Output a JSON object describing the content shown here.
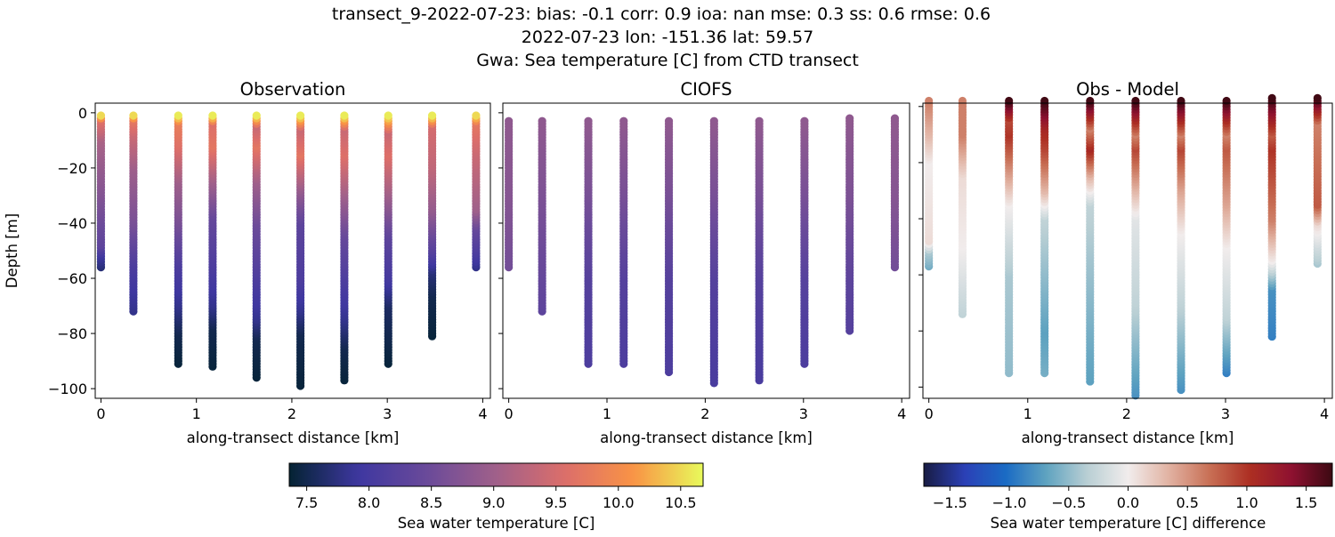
{
  "title_lines": [
    "transect_9-2022-07-23: bias: -0.1  corr: 0.9  ioa: nan  mse: 0.3  ss: 0.6  rmse: 0.6",
    "2022-07-23 lon: -151.36 lat: 59.57",
    "Gwa: Sea temperature [C] from CTD transect"
  ],
  "chart_data": [
    {
      "type": "scatter",
      "title": "Observation",
      "xlabel": "along-transect distance [km]",
      "ylabel": "Depth [m]",
      "xlim": [
        -0.06,
        4.08
      ],
      "ylim": [
        -103.5,
        3.5
      ],
      "xticks": [
        "0",
        "1",
        "2",
        "3",
        "4"
      ],
      "yticks": [
        "0",
        "−20",
        "−40",
        "−60",
        "−80",
        "−100"
      ],
      "color_variable": "Sea water temperature [C]",
      "stations": [
        {
          "x": 0.0,
          "profile": [
            [
              -1,
              10.5
            ],
            [
              -3,
              9.6
            ],
            [
              -10,
              9.1
            ],
            [
              -30,
              8.7
            ],
            [
              -48,
              8.3
            ],
            [
              -52,
              7.9
            ],
            [
              -56,
              7.7
            ]
          ]
        },
        {
          "x": 0.34,
          "profile": [
            [
              -1,
              10.5
            ],
            [
              -3,
              9.7
            ],
            [
              -8,
              9.4
            ],
            [
              -20,
              9.0
            ],
            [
              -40,
              8.6
            ],
            [
              -55,
              8.1
            ],
            [
              -65,
              7.9
            ],
            [
              -72,
              7.8
            ]
          ]
        },
        {
          "x": 0.81,
          "profile": [
            [
              -1,
              10.6
            ],
            [
              -4,
              9.8
            ],
            [
              -12,
              9.6
            ],
            [
              -25,
              9.0
            ],
            [
              -40,
              8.6
            ],
            [
              -55,
              8.1
            ],
            [
              -70,
              7.8
            ],
            [
              -80,
              7.5
            ],
            [
              -91,
              7.4
            ]
          ]
        },
        {
          "x": 1.17,
          "profile": [
            [
              -1,
              10.6
            ],
            [
              -4,
              9.6
            ],
            [
              -12,
              9.7
            ],
            [
              -25,
              9.0
            ],
            [
              -38,
              8.4
            ],
            [
              -55,
              8.1
            ],
            [
              -70,
              7.8
            ],
            [
              -78,
              7.5
            ],
            [
              -92,
              7.4
            ]
          ]
        },
        {
          "x": 1.63,
          "profile": [
            [
              -1,
              10.6
            ],
            [
              -5,
              9.4
            ],
            [
              -12,
              9.7
            ],
            [
              -25,
              9.0
            ],
            [
              -40,
              8.5
            ],
            [
              -60,
              8.1
            ],
            [
              -75,
              7.8
            ],
            [
              -82,
              7.5
            ],
            [
              -96,
              7.4
            ]
          ]
        },
        {
          "x": 2.09,
          "profile": [
            [
              -1,
              10.6
            ],
            [
              -6,
              9.4
            ],
            [
              -15,
              9.7
            ],
            [
              -30,
              8.8
            ],
            [
              -40,
              8.3
            ],
            [
              -60,
              8.1
            ],
            [
              -72,
              7.8
            ],
            [
              -80,
              7.5
            ],
            [
              -99,
              7.4
            ]
          ]
        },
        {
          "x": 2.55,
          "profile": [
            [
              -1,
              10.6
            ],
            [
              -6,
              9.4
            ],
            [
              -15,
              9.6
            ],
            [
              -30,
              9.0
            ],
            [
              -45,
              8.4
            ],
            [
              -60,
              8.1
            ],
            [
              -75,
              7.8
            ],
            [
              -85,
              7.5
            ],
            [
              -97,
              7.4
            ]
          ]
        },
        {
          "x": 3.01,
          "profile": [
            [
              -1,
              10.6
            ],
            [
              -7,
              9.4
            ],
            [
              -15,
              9.6
            ],
            [
              -30,
              9.0
            ],
            [
              -45,
              8.3
            ],
            [
              -60,
              8.0
            ],
            [
              -70,
              7.6
            ],
            [
              -91,
              7.4
            ]
          ]
        },
        {
          "x": 3.47,
          "profile": [
            [
              -1,
              10.6
            ],
            [
              -5,
              9.5
            ],
            [
              -20,
              9.3
            ],
            [
              -35,
              8.9
            ],
            [
              -50,
              8.2
            ],
            [
              -58,
              7.7
            ],
            [
              -66,
              7.5
            ],
            [
              -81,
              7.4
            ]
          ]
        },
        {
          "x": 3.93,
          "profile": [
            [
              -1,
              10.5
            ],
            [
              -4,
              9.7
            ],
            [
              -15,
              9.4
            ],
            [
              -35,
              9.0
            ],
            [
              -42,
              8.4
            ],
            [
              -50,
              8.1
            ],
            [
              -56,
              7.8
            ]
          ]
        }
      ]
    },
    {
      "type": "scatter",
      "title": "CIOFS",
      "xlabel": "along-transect distance [km]",
      "xlim": [
        -0.06,
        4.08
      ],
      "ylim": [
        -103.5,
        3.5
      ],
      "xticks": [
        "0",
        "1",
        "2",
        "3",
        "4"
      ],
      "color_variable": "Sea water temperature [C]",
      "stations": [
        {
          "x": 0.0,
          "profile": [
            [
              -3,
              8.85
            ],
            [
              -30,
              8.75
            ],
            [
              -56,
              8.55
            ]
          ]
        },
        {
          "x": 0.34,
          "profile": [
            [
              -3,
              8.85
            ],
            [
              -30,
              8.65
            ],
            [
              -72,
              8.3
            ]
          ]
        },
        {
          "x": 0.81,
          "profile": [
            [
              -3,
              8.85
            ],
            [
              -30,
              8.6
            ],
            [
              -60,
              8.2
            ],
            [
              -91,
              8.1
            ]
          ]
        },
        {
          "x": 1.17,
          "profile": [
            [
              -3,
              8.85
            ],
            [
              -30,
              8.6
            ],
            [
              -60,
              8.2
            ],
            [
              -91,
              8.1
            ]
          ]
        },
        {
          "x": 1.63,
          "profile": [
            [
              -3,
              8.85
            ],
            [
              -30,
              8.6
            ],
            [
              -60,
              8.2
            ],
            [
              -94,
              8.1
            ]
          ]
        },
        {
          "x": 2.09,
          "profile": [
            [
              -3,
              8.85
            ],
            [
              -30,
              8.6
            ],
            [
              -60,
              8.2
            ],
            [
              -98,
              8.05
            ]
          ]
        },
        {
          "x": 2.55,
          "profile": [
            [
              -3,
              8.85
            ],
            [
              -30,
              8.6
            ],
            [
              -60,
              8.2
            ],
            [
              -97,
              8.05
            ]
          ]
        },
        {
          "x": 3.01,
          "profile": [
            [
              -3,
              8.85
            ],
            [
              -30,
              8.6
            ],
            [
              -60,
              8.2
            ],
            [
              -91,
              8.1
            ]
          ]
        },
        {
          "x": 3.47,
          "profile": [
            [
              -2,
              8.85
            ],
            [
              -30,
              8.65
            ],
            [
              -60,
              8.3
            ],
            [
              -79,
              8.2
            ]
          ]
        },
        {
          "x": 3.93,
          "profile": [
            [
              -2,
              8.85
            ],
            [
              -30,
              8.75
            ],
            [
              -56,
              8.55
            ]
          ]
        }
      ]
    },
    {
      "type": "scatter",
      "title": "Obs - Model",
      "xlabel": "along-transect distance [km]",
      "xlim": [
        -0.06,
        4.08
      ],
      "ylim": [
        -104,
        1.2
      ],
      "xticks": [
        "0",
        "1",
        "2",
        "3",
        "4"
      ],
      "color_variable": "Sea water temperature [C] difference",
      "stations": [
        {
          "x": 0.0,
          "profile": [
            [
              2,
              0.6
            ],
            [
              -10,
              0.3
            ],
            [
              -20,
              0.0
            ],
            [
              -48,
              0.1
            ],
            [
              -52,
              -0.4
            ],
            [
              -57,
              -0.6
            ]
          ]
        },
        {
          "x": 0.34,
          "profile": [
            [
              2,
              0.6
            ],
            [
              -10,
              0.6
            ],
            [
              -25,
              0.1
            ],
            [
              -50,
              0.0
            ],
            [
              -74,
              -0.3
            ]
          ]
        },
        {
          "x": 0.81,
          "profile": [
            [
              2,
              1.7
            ],
            [
              -5,
              0.9
            ],
            [
              -10,
              1.0
            ],
            [
              -25,
              0.4
            ],
            [
              -35,
              0.0
            ],
            [
              -60,
              -0.4
            ],
            [
              -95,
              -0.5
            ]
          ]
        },
        {
          "x": 1.17,
          "profile": [
            [
              2,
              1.7
            ],
            [
              -8,
              1.1
            ],
            [
              -15,
              0.9
            ],
            [
              -30,
              0.3
            ],
            [
              -40,
              -0.3
            ],
            [
              -80,
              -0.7
            ],
            [
              -95,
              -0.6
            ]
          ]
        },
        {
          "x": 1.63,
          "profile": [
            [
              2,
              1.7
            ],
            [
              -8,
              0.6
            ],
            [
              -15,
              1.1
            ],
            [
              -25,
              0.3
            ],
            [
              -35,
              -0.3
            ],
            [
              -80,
              -0.6
            ],
            [
              -98,
              -0.7
            ]
          ]
        },
        {
          "x": 2.09,
          "profile": [
            [
              2,
              1.7
            ],
            [
              -10,
              0.6
            ],
            [
              -15,
              0.9
            ],
            [
              -30,
              0.3
            ],
            [
              -40,
              -0.1
            ],
            [
              -70,
              -0.3
            ],
            [
              -103,
              -0.8
            ]
          ]
        },
        {
          "x": 2.55,
          "profile": [
            [
              2,
              1.7
            ],
            [
              -10,
              0.6
            ],
            [
              -15,
              0.9
            ],
            [
              -30,
              0.4
            ],
            [
              -45,
              0.0
            ],
            [
              -70,
              -0.3
            ],
            [
              -101,
              -0.8
            ]
          ]
        },
        {
          "x": 3.01,
          "profile": [
            [
              2,
              1.7
            ],
            [
              -10,
              0.6
            ],
            [
              -15,
              0.8
            ],
            [
              -35,
              0.4
            ],
            [
              -50,
              0.0
            ],
            [
              -75,
              -0.3
            ],
            [
              -95,
              -0.9
            ]
          ]
        },
        {
          "x": 3.47,
          "profile": [
            [
              3,
              1.7
            ],
            [
              -10,
              0.8
            ],
            [
              -15,
              1.0
            ],
            [
              -40,
              0.6
            ],
            [
              -55,
              0.0
            ],
            [
              -65,
              -0.8
            ],
            [
              -82,
              -0.9
            ]
          ]
        },
        {
          "x": 3.93,
          "profile": [
            [
              3,
              1.7
            ],
            [
              -6,
              0.6
            ],
            [
              -35,
              0.8
            ],
            [
              -42,
              0.1
            ],
            [
              -50,
              -0.2
            ],
            [
              -56,
              -0.4
            ]
          ]
        }
      ]
    }
  ],
  "colorbars": [
    {
      "label": "Sea water temperature [C]",
      "range": [
        7.36,
        10.68
      ],
      "cmap": "thermal",
      "ticks": [
        {
          "v": 7.5,
          "t": "7.5"
        },
        {
          "v": 8.0,
          "t": "8.0"
        },
        {
          "v": 8.5,
          "t": "8.5"
        },
        {
          "v": 9.0,
          "t": "9.0"
        },
        {
          "v": 9.5,
          "t": "9.5"
        },
        {
          "v": 10.0,
          "t": "10.0"
        },
        {
          "v": 10.5,
          "t": "10.5"
        }
      ]
    },
    {
      "label": "Sea water temperature [C] difference",
      "range": [
        -1.72,
        1.72
      ],
      "cmap": "balance",
      "ticks": [
        {
          "v": -1.5,
          "t": "−1.5"
        },
        {
          "v": -1.0,
          "t": "−1.0"
        },
        {
          "v": -0.5,
          "t": "−0.5"
        },
        {
          "v": 0,
          "t": "0.0"
        },
        {
          "v": 0.5,
          "t": "0.5"
        },
        {
          "v": 1.0,
          "t": "1.0"
        },
        {
          "v": 1.5,
          "t": "1.5"
        }
      ]
    }
  ],
  "colors": {
    "thermal": [
      "#042333",
      "#3e37a0",
      "#6a4a9a",
      "#a0608a",
      "#dc6e6a",
      "#f99445",
      "#e8fa5b"
    ],
    "balance": [
      "#181c43",
      "#2b40b6",
      "#1a6bc4",
      "#5fa3c0",
      "#b9cfd4",
      "#f1ecec",
      "#e1b2a2",
      "#c86f55",
      "#ac2e22",
      "#8e1130",
      "#3c0912"
    ]
  }
}
